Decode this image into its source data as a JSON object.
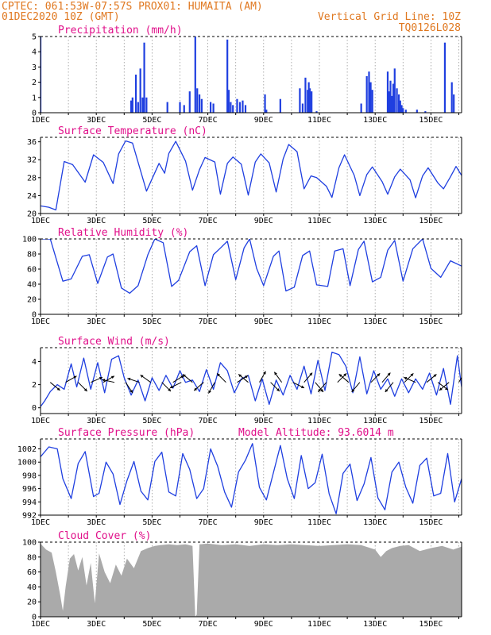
{
  "header": {
    "line1_left": "CPTEC:   061:53W-07:57S   PROX01: HUMAITA (AM)",
    "line2_left": "01DEC2020 10Z (GMT)",
    "line2_right": "Vertical Grid Line: 10Z",
    "line3_right": "TQ0126L028"
  },
  "colors": {
    "header": "#e07820",
    "title": "#e0108a",
    "series": "#1f3fe0",
    "cloud": "#aaaaaa"
  },
  "chart_data": [
    {
      "type": "bar",
      "title": "Precipitation (mm/h)",
      "x_tick_labels": [
        "1DEC",
        "3DEC",
        "5DEC",
        "7DEC",
        "9DEC",
        "11DEC",
        "13DEC",
        "15DEC"
      ],
      "x_range_days": [
        1,
        16.1
      ],
      "ylim": [
        0,
        5
      ],
      "yticks": [
        0,
        1,
        2,
        3,
        4,
        5
      ],
      "x": [
        1.0,
        4.25,
        4.3,
        4.42,
        4.5,
        4.58,
        4.66,
        4.72,
        4.8,
        5.55,
        6.0,
        6.15,
        6.35,
        6.55,
        6.62,
        6.7,
        6.78,
        7.1,
        7.2,
        7.7,
        7.75,
        7.82,
        7.9,
        8.05,
        8.15,
        8.25,
        8.35,
        9.05,
        9.1,
        9.6,
        10.3,
        10.4,
        10.5,
        10.58,
        10.62,
        10.66,
        10.72,
        10.9,
        12.5,
        12.7,
        12.78,
        12.84,
        12.9,
        13.45,
        13.5,
        13.55,
        13.6,
        13.65,
        13.7,
        13.78,
        13.85,
        13.9,
        13.95,
        14.0,
        14.1,
        14.5,
        14.8,
        15.5,
        15.75,
        15.82
      ],
      "y": [
        5.0,
        0.8,
        1.0,
        2.5,
        0.7,
        2.9,
        1.0,
        4.6,
        1.0,
        0.7,
        0.7,
        0.5,
        1.4,
        5.0,
        1.6,
        1.2,
        0.9,
        0.7,
        0.6,
        4.8,
        1.5,
        0.7,
        0.5,
        0.9,
        0.7,
        0.8,
        0.5,
        1.2,
        0.2,
        0.9,
        1.6,
        0.6,
        2.3,
        1.5,
        2.0,
        1.6,
        1.4,
        0.1,
        0.6,
        2.4,
        2.7,
        2.0,
        1.5,
        2.7,
        1.4,
        2.1,
        1.1,
        1.9,
        2.9,
        1.6,
        1.2,
        0.8,
        0.5,
        0.3,
        0.2,
        0.2,
        0.1,
        4.6,
        2.0,
        1.2
      ]
    },
    {
      "type": "line",
      "title": "Surface Temperature (nC)",
      "x_tick_labels": [
        "1DEC",
        "3DEC",
        "5DEC",
        "7DEC",
        "9DEC",
        "11DEC",
        "13DEC",
        "15DEC"
      ],
      "x_range_days": [
        1,
        16.1
      ],
      "ylim": [
        20,
        37
      ],
      "yticks": [
        20,
        24,
        28,
        32,
        36
      ],
      "x": [
        1.0,
        1.3,
        1.55,
        1.85,
        2.15,
        2.6,
        2.9,
        3.25,
        3.6,
        3.8,
        4.05,
        4.3,
        4.8,
        5.25,
        5.45,
        5.6,
        5.85,
        6.2,
        6.45,
        6.7,
        6.9,
        7.25,
        7.45,
        7.7,
        7.9,
        8.2,
        8.45,
        8.7,
        8.9,
        9.2,
        9.45,
        9.7,
        9.9,
        10.2,
        10.45,
        10.7,
        10.9,
        11.25,
        11.45,
        11.7,
        11.9,
        12.25,
        12.45,
        12.7,
        12.9,
        13.25,
        13.45,
        13.7,
        13.9,
        14.25,
        14.45,
        14.7,
        14.9,
        15.25,
        15.45,
        15.7,
        15.9,
        16.1
      ],
      "y": [
        21.7,
        21.4,
        20.8,
        31.6,
        30.9,
        27.0,
        33.1,
        31.4,
        26.7,
        33.3,
        36.2,
        35.7,
        25.0,
        31.2,
        29.0,
        33.4,
        36.1,
        31.7,
        25.2,
        29.8,
        32.5,
        31.5,
        24.3,
        31.2,
        32.6,
        31.0,
        24.1,
        31.5,
        33.3,
        31.3,
        24.8,
        32.2,
        35.4,
        33.8,
        25.5,
        28.4,
        28.0,
        26.1,
        23.6,
        30.2,
        33.1,
        28.5,
        24.0,
        28.7,
        30.4,
        27.1,
        24.3,
        28.2,
        29.9,
        27.5,
        23.5,
        28.4,
        30.2,
        26.8,
        25.5,
        28.2,
        30.5,
        28.5
      ]
    },
    {
      "type": "line",
      "title": "Relative Humidity (%)",
      "x_tick_labels": [
        "1DEC",
        "3DEC",
        "5DEC",
        "7DEC",
        "9DEC",
        "11DEC",
        "13DEC",
        "15DEC"
      ],
      "x_range_days": [
        1,
        16.1
      ],
      "ylim": [
        0,
        100
      ],
      "yticks": [
        0,
        20,
        40,
        60,
        80,
        100
      ],
      "x": [
        1.0,
        1.35,
        1.8,
        2.1,
        2.5,
        2.75,
        3.05,
        3.4,
        3.6,
        3.9,
        4.2,
        4.5,
        4.85,
        5.1,
        5.4,
        5.7,
        5.95,
        6.35,
        6.6,
        6.9,
        7.2,
        7.4,
        7.7,
        8.0,
        8.3,
        8.5,
        8.75,
        9.0,
        9.35,
        9.55,
        9.8,
        10.1,
        10.4,
        10.65,
        10.9,
        11.3,
        11.55,
        11.85,
        12.1,
        12.4,
        12.6,
        12.9,
        13.2,
        13.45,
        13.7,
        14.0,
        14.35,
        14.7,
        15.0,
        15.35,
        15.7,
        16.1
      ],
      "y": [
        100,
        99.9,
        44,
        47,
        77,
        79,
        41,
        76,
        80,
        35,
        28,
        38,
        79,
        100,
        95,
        37,
        45,
        83,
        91,
        38,
        79,
        86,
        97,
        46,
        88,
        100,
        61,
        38,
        77,
        84,
        31,
        36,
        78,
        84,
        39,
        37,
        84,
        87,
        38,
        86,
        97,
        43,
        49,
        85,
        98,
        44,
        87,
        100,
        61,
        49,
        71,
        64
      ]
    },
    {
      "type": "line",
      "title": "Surface Wind (m/s)",
      "x_tick_labels": [
        "1DEC",
        "3DEC",
        "5DEC",
        "7DEC",
        "9DEC",
        "11DEC",
        "13DEC",
        "15DEC"
      ],
      "x_range_days": [
        1,
        16.1
      ],
      "ylim": [
        -0.5,
        5.2
      ],
      "yticks": [
        0,
        2,
        4
      ],
      "x": [
        1.0,
        1.15,
        1.35,
        1.6,
        1.85,
        2.1,
        2.3,
        2.55,
        2.8,
        3.05,
        3.3,
        3.55,
        3.8,
        4.0,
        4.25,
        4.5,
        4.75,
        5.0,
        5.25,
        5.5,
        5.75,
        6.0,
        6.2,
        6.45,
        6.7,
        6.95,
        7.2,
        7.45,
        7.7,
        7.95,
        8.2,
        8.45,
        8.7,
        8.95,
        9.2,
        9.45,
        9.7,
        9.95,
        10.2,
        10.45,
        10.7,
        10.95,
        11.2,
        11.45,
        11.7,
        11.95,
        12.2,
        12.45,
        12.7,
        12.95,
        13.2,
        13.45,
        13.7,
        13.95,
        14.2,
        14.45,
        14.7,
        14.95,
        15.2,
        15.45,
        15.7,
        15.95,
        16.1
      ],
      "y": [
        0.1,
        0.6,
        1.4,
        2.0,
        1.6,
        3.8,
        1.8,
        4.3,
        1.6,
        3.9,
        1.3,
        4.2,
        4.5,
        2.6,
        1.1,
        2.4,
        0.6,
        2.6,
        1.5,
        2.8,
        1.7,
        3.2,
        2.2,
        2.4,
        1.4,
        3.3,
        1.6,
        3.9,
        3.2,
        1.3,
        2.5,
        2.8,
        0.6,
        2.5,
        0.3,
        2.4,
        1.1,
        2.8,
        1.6,
        3.6,
        1.2,
        4.1,
        1.5,
        4.8,
        4.6,
        3.6,
        1.3,
        4.4,
        1.2,
        3.2,
        1.6,
        2.5,
        1.0,
        2.5,
        1.3,
        2.5,
        1.6,
        3.0,
        1.1,
        3.4,
        0.3,
        4.5,
        1.8
      ],
      "vectors": {
        "x": [
          1.35,
          1.9,
          2.35,
          2.8,
          3.25,
          3.65,
          4.05,
          4.55,
          4.95,
          5.35,
          5.75,
          6.05,
          6.45,
          6.85,
          7.25,
          7.65,
          8.05,
          8.45,
          8.85,
          9.25,
          9.65,
          10.05,
          10.45,
          10.85,
          11.25,
          11.65,
          12.05,
          12.45,
          12.85,
          13.25,
          13.65,
          14.05,
          14.45,
          14.85,
          15.25,
          15.65,
          16.0
        ],
        "u": [
          0.6,
          0.7,
          0.6,
          0.7,
          0.7,
          -0.9,
          0.4,
          -0.9,
          -0.7,
          0.6,
          0.8,
          -0.8,
          -0.6,
          -0.7,
          -0.4,
          -0.6,
          0.8,
          -0.6,
          0.4,
          0.6,
          -0.5,
          0.8,
          0.6,
          0.5,
          -0.6,
          0.6,
          -0.7,
          -0.5,
          0.5,
          0.6,
          -0.5,
          0.6,
          -0.7,
          0.6,
          0.8,
          -0.6,
          0.4
        ],
        "v": [
          -0.5,
          0.4,
          -0.6,
          0.3,
          0.4,
          0.2,
          -0.6,
          0.3,
          0.5,
          -0.6,
          0.5,
          -0.4,
          0.5,
          -0.6,
          -0.7,
          0.6,
          0.5,
          0.5,
          0.7,
          -0.6,
          0.7,
          -0.4,
          0.7,
          -0.6,
          -0.7,
          0.6,
          0.6,
          -0.6,
          0.5,
          0.7,
          -0.6,
          0.6,
          0.3,
          0.5,
          -0.6,
          -0.5,
          0.7
        ]
      }
    },
    {
      "type": "line",
      "title": "Surface Pressure (hPa)",
      "annotation": "Model Altitude: 93.6014 m",
      "x_tick_labels": [
        "1DEC",
        "3DEC",
        "5DEC",
        "7DEC",
        "9DEC",
        "11DEC",
        "13DEC",
        "15DEC"
      ],
      "x_range_days": [
        1,
        16.1
      ],
      "ylim": [
        992,
        1003.5
      ],
      "yticks": [
        992,
        994,
        996,
        998,
        1000,
        1002
      ],
      "x": [
        1.0,
        1.3,
        1.6,
        1.8,
        2.1,
        2.35,
        2.6,
        2.9,
        3.1,
        3.35,
        3.6,
        3.85,
        4.1,
        4.35,
        4.6,
        4.85,
        5.1,
        5.35,
        5.6,
        5.85,
        6.1,
        6.35,
        6.6,
        6.85,
        7.1,
        7.35,
        7.6,
        7.85,
        8.1,
        8.35,
        8.6,
        8.85,
        9.1,
        9.35,
        9.6,
        9.85,
        10.1,
        10.35,
        10.6,
        10.85,
        11.1,
        11.35,
        11.6,
        11.85,
        12.1,
        12.35,
        12.6,
        12.85,
        13.1,
        13.35,
        13.6,
        13.85,
        14.1,
        14.35,
        14.6,
        14.85,
        15.1,
        15.35,
        15.6,
        15.85,
        16.1
      ],
      "y": [
        1000.8,
        1002.3,
        1002.0,
        997.5,
        994.5,
        999.8,
        1001.6,
        994.8,
        995.3,
        1000.0,
        998.2,
        993.6,
        997.2,
        1000.1,
        995.6,
        994.3,
        1000.1,
        1001.5,
        995.5,
        994.9,
        1001.3,
        998.9,
        994.5,
        996.0,
        1002.0,
        999.4,
        995.5,
        993.2,
        998.5,
        1000.3,
        1002.8,
        996.2,
        994.3,
        998.4,
        1002.5,
        997.5,
        994.5,
        1001.0,
        996.0,
        996.9,
        1001.2,
        995.2,
        992.2,
        998.3,
        999.7,
        994.2,
        996.7,
        1000.7,
        994.6,
        992.8,
        998.5,
        1000.0,
        996.2,
        993.8,
        999.5,
        1000.6,
        994.9,
        995.3,
        1001.3,
        994.0,
        997.5
      ]
    },
    {
      "type": "area",
      "title": "Cloud Cover (%)",
      "x_tick_labels": [
        "1DEC",
        "3DEC",
        "5DEC",
        "7DEC",
        "9DEC",
        "11DEC",
        "13DEC",
        "15DEC"
      ],
      "x_range_days": [
        1,
        16.1
      ],
      "ylim": [
        0,
        100
      ],
      "yticks": [
        0,
        20,
        40,
        60,
        80,
        100
      ],
      "x": [
        1.0,
        1.2,
        1.4,
        1.55,
        1.7,
        1.8,
        1.9,
        2.05,
        2.2,
        2.35,
        2.5,
        2.65,
        2.8,
        2.95,
        3.1,
        3.3,
        3.5,
        3.7,
        3.9,
        4.1,
        4.35,
        4.6,
        4.85,
        5.1,
        5.3,
        5.6,
        5.9,
        6.2,
        6.45,
        6.55,
        6.6,
        6.7,
        7.0,
        7.5,
        8.0,
        8.5,
        9.0,
        9.5,
        10.0,
        10.5,
        11.0,
        11.5,
        12.0,
        12.5,
        13.0,
        13.2,
        13.4,
        13.6,
        13.9,
        14.2,
        14.6,
        15.0,
        15.4,
        15.8,
        16.1
      ],
      "y": [
        98,
        90,
        86,
        60,
        30,
        8,
        40,
        78,
        84,
        62,
        80,
        42,
        72,
        18,
        85,
        60,
        45,
        70,
        55,
        78,
        65,
        88,
        92,
        95,
        96,
        97,
        96,
        97,
        95,
        0,
        3,
        97,
        98,
        96,
        97,
        95,
        97,
        96,
        97,
        96,
        95,
        96,
        97,
        96,
        90,
        80,
        88,
        92,
        95,
        96,
        88,
        92,
        95,
        90,
        94
      ]
    }
  ]
}
